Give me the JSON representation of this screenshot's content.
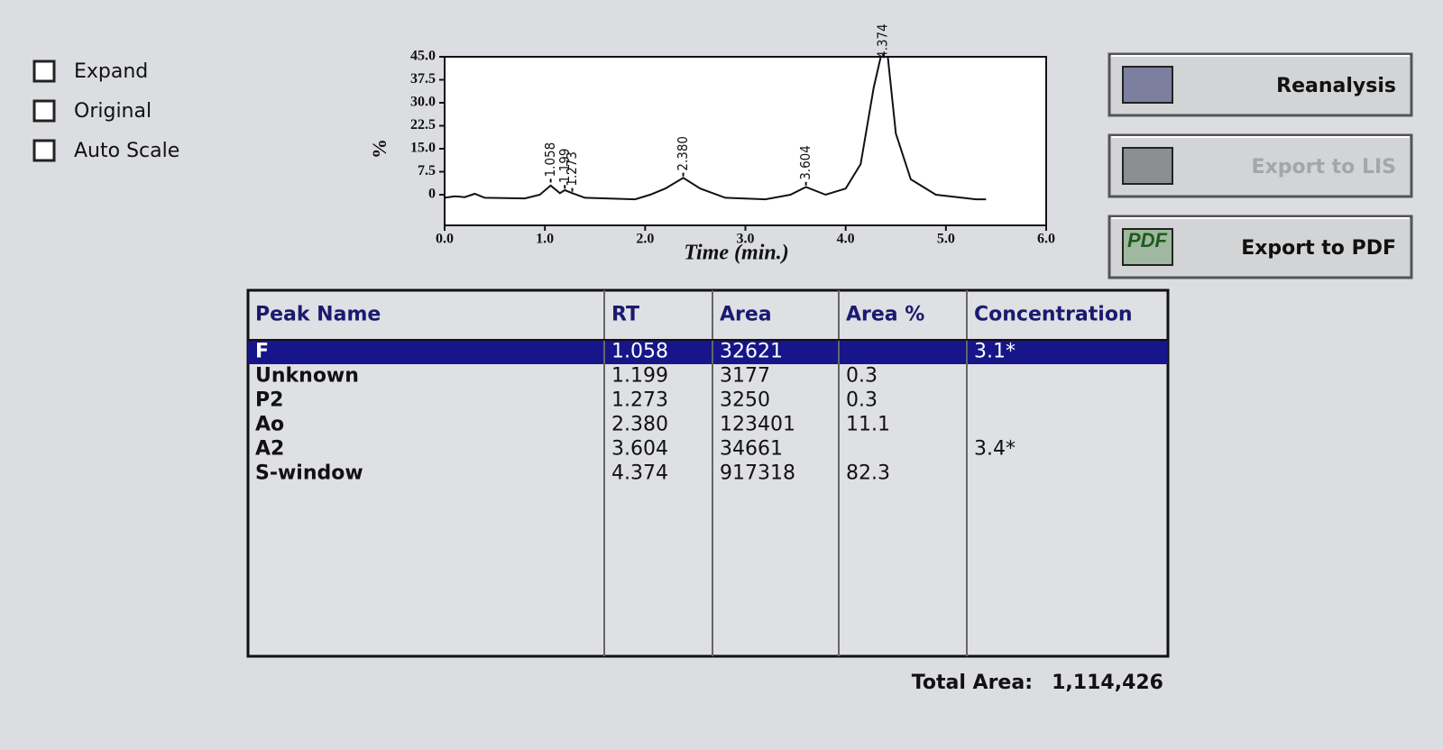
{
  "controls": {
    "checkboxes": [
      "Expand",
      "Original",
      "Auto Scale"
    ]
  },
  "chart_data": {
    "type": "line",
    "ylabel": "%",
    "xlabel": "Time (min.)",
    "color": "#111111",
    "x": [
      0.0,
      0.1,
      0.2,
      0.3,
      0.4,
      0.8,
      0.95,
      1.058,
      1.15,
      1.199,
      1.273,
      1.4,
      1.9,
      2.05,
      2.2,
      2.38,
      2.55,
      2.8,
      3.2,
      3.45,
      3.604,
      3.8,
      4.0,
      4.15,
      4.28,
      4.35,
      4.374,
      4.42,
      4.5,
      4.65,
      4.9,
      5.3,
      5.4
    ],
    "values": [
      -1,
      -0.5,
      -0.8,
      0.3,
      -1,
      -1.2,
      0,
      3,
      0.5,
      1.5,
      0.5,
      -1,
      -1.5,
      0,
      2,
      5.5,
      2,
      -1,
      -1.5,
      0,
      2.5,
      0,
      2,
      10,
      35,
      45,
      45,
      45,
      20,
      5,
      0,
      -1.5,
      -1.5
    ],
    "xlim": [
      0,
      6
    ],
    "ylim": [
      -10,
      45
    ],
    "xticks": [
      {
        "value": 0,
        "label": "0.0"
      },
      {
        "value": 1,
        "label": "1.0"
      },
      {
        "value": 2,
        "label": "2.0"
      },
      {
        "value": 3,
        "label": "3.0"
      },
      {
        "value": 4,
        "label": "4.0"
      },
      {
        "value": 5,
        "label": "5.0"
      },
      {
        "value": 6,
        "label": "6.0"
      }
    ],
    "yticks": [
      0,
      7.5,
      {
        "value": 15,
        "label": "15.0"
      },
      22.5,
      {
        "value": 30,
        "label": "30.0"
      },
      37.5,
      {
        "value": 45,
        "label": "45.0"
      }
    ],
    "peaks": {
      "x": [
        1.058,
        1.199,
        1.273,
        2.38,
        3.604,
        4.374
      ],
      "labels": [
        "1.058",
        "1.199",
        "1.273",
        "2.380",
        "3.604",
        "4.374"
      ],
      "heights": [
        4,
        2,
        1,
        6,
        3,
        45
      ]
    }
  },
  "buttons": [
    "Reanalysis",
    "Export to LIS",
    "Export to PDF"
  ],
  "pdf_icon": "PDF",
  "table": {
    "columns": [
      "Peak Name",
      "RT",
      "Area",
      "Area %",
      "Concentration"
    ],
    "rows": [
      [
        "F",
        "1.058",
        "32621",
        null,
        "3.1*"
      ],
      [
        "Unknown",
        "1.199",
        "3177",
        "0.3",
        null
      ],
      [
        "P2",
        "1.273",
        "3250",
        "0.3",
        null
      ],
      [
        "Ao",
        "2.380",
        "123401",
        "11.1",
        null
      ],
      [
        "A2",
        "3.604",
        "34661",
        null,
        "3.4*"
      ],
      [
        "S-window",
        "4.374",
        "917318",
        "82.3",
        null
      ]
    ],
    "selected_row": 0
  },
  "total": {
    "label": "Total Area:",
    "value": "1,114,426"
  }
}
